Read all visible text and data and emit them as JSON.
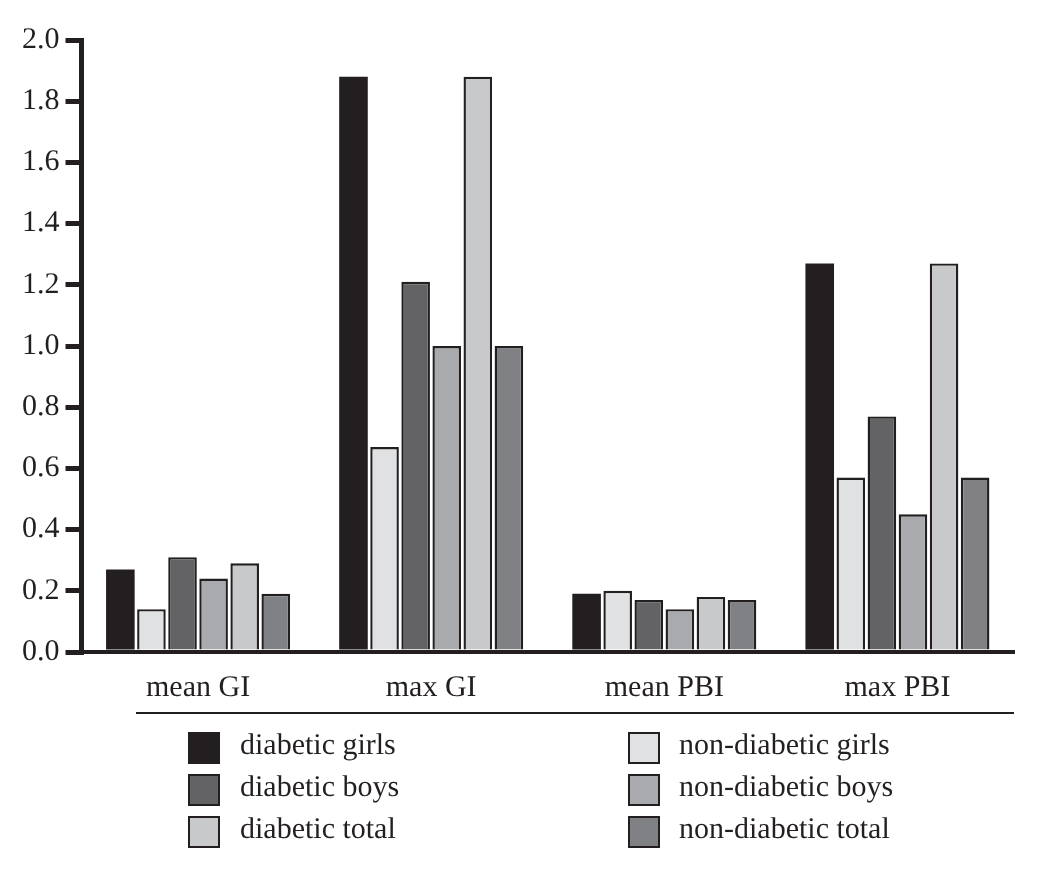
{
  "chart_data": {
    "type": "bar",
    "categories": [
      "mean GI",
      "max GI",
      "mean PBI",
      "max PBI"
    ],
    "series": [
      {
        "name": "diabetic girls",
        "color": "#231f20",
        "values": [
          0.27,
          1.88,
          0.19,
          1.27
        ]
      },
      {
        "name": "non-diabetic girls",
        "color": "#e0e1e2",
        "values": [
          0.14,
          0.67,
          0.2,
          0.57
        ]
      },
      {
        "name": "diabetic boys",
        "color": "#636366",
        "values": [
          0.31,
          1.21,
          0.17,
          0.77
        ]
      },
      {
        "name": "non-diabetic boys",
        "color": "#a9aaad",
        "values": [
          0.24,
          1.0,
          0.14,
          0.45
        ]
      },
      {
        "name": "diabetic total",
        "color": "#c8c9cb",
        "values": [
          0.29,
          1.88,
          0.18,
          1.27
        ]
      },
      {
        "name": "non-diabetic total",
        "color": "#808184",
        "values": [
          0.19,
          1.0,
          0.17,
          0.57
        ]
      }
    ],
    "ylim": [
      0,
      2.0
    ],
    "yticks": [
      {
        "value": 0,
        "label": "0.0"
      },
      0.2,
      0.4,
      0.6,
      0.8,
      {
        "value": 1.0,
        "label": "1.0"
      },
      1.2,
      1.4,
      1.6,
      1.8,
      {
        "value": 2.0,
        "label": "2.0"
      }
    ],
    "grid": false,
    "legend": "bottom"
  }
}
